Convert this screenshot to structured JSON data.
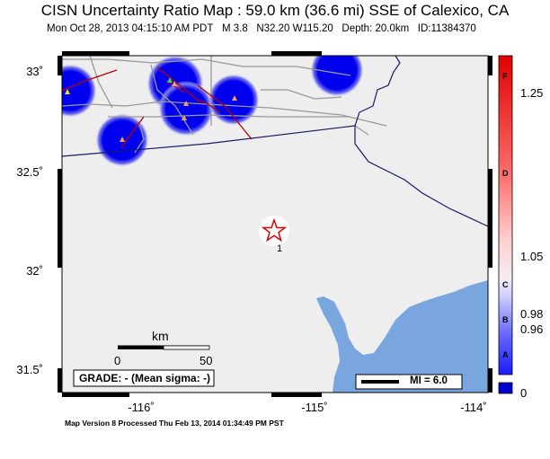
{
  "header": {
    "title": "CISN Uncertainty Ratio Map : 59.0 km (36.6 mi) SSE of Calexico, CA",
    "datetime": "Mon Oct 28, 2013 04:15:10 AM PDT",
    "magnitude": "M 3.8",
    "location": "N32.20 W115.20",
    "depth": "Depth: 20.0km",
    "event_id": "ID:11384370"
  },
  "map": {
    "lat_labels": [
      "33˚",
      "32.5˚",
      "32˚",
      "31.5˚"
    ],
    "lon_labels": [
      "-116˚",
      "-115˚",
      "-114˚"
    ],
    "epicenter": {
      "lat": 32.2,
      "lon": -115.2,
      "label": "1"
    },
    "scale_bar": {
      "unit": "km",
      "start": "0",
      "end": "50"
    },
    "grade_box": "GRADE: - (Mean sigma: -)",
    "mi_legend": "MI = 6.0",
    "colors": {
      "ocean": "#7aa6e0",
      "uncertainty_blue": "#0000ee",
      "fault": "#cc0000",
      "border": "#1a1a66",
      "road": "#999999"
    }
  },
  "colorbar": {
    "values": [
      "1.25",
      "1.05",
      "0.98",
      "0.96",
      "0"
    ],
    "letters": [
      "F",
      "D",
      "C",
      "B",
      "A"
    ]
  },
  "footer": {
    "text": "Map Version 8 Processed Thu Feb 13, 2014 01:34:49 PM PST"
  }
}
